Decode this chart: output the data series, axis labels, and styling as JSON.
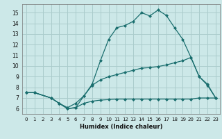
{
  "xlabel": "Humidex (Indice chaleur)",
  "bg_color": "#cce8e8",
  "grid_color": "#aacccc",
  "line_color": "#1a6e6e",
  "xlim": [
    -0.5,
    23.5
  ],
  "ylim": [
    5.5,
    15.8
  ],
  "xticks": [
    0,
    1,
    2,
    3,
    4,
    5,
    6,
    7,
    8,
    9,
    10,
    11,
    12,
    13,
    14,
    15,
    16,
    17,
    18,
    19,
    20,
    21,
    22,
    23
  ],
  "yticks": [
    6,
    7,
    8,
    9,
    10,
    11,
    12,
    13,
    14,
    15
  ],
  "line1_x": [
    0,
    1,
    3,
    4,
    5,
    6,
    7,
    8,
    9,
    10,
    11,
    12,
    13,
    14,
    15,
    16,
    17,
    18,
    19,
    20,
    21,
    22,
    23
  ],
  "line1_y": [
    7.5,
    7.5,
    7.0,
    6.5,
    6.0,
    6.1,
    7.2,
    8.3,
    10.5,
    12.5,
    13.6,
    13.8,
    14.2,
    15.0,
    14.7,
    15.25,
    14.75,
    13.6,
    12.5,
    10.8,
    9.0,
    8.2,
    7.0
  ],
  "line2_x": [
    0,
    1,
    3,
    4,
    5,
    6,
    7,
    8,
    9,
    10,
    11,
    12,
    13,
    14,
    15,
    16,
    17,
    18,
    19,
    20,
    21,
    22,
    23
  ],
  "line2_y": [
    7.5,
    7.5,
    7.0,
    6.5,
    6.1,
    6.5,
    7.2,
    8.2,
    8.7,
    9.0,
    9.2,
    9.4,
    9.6,
    9.8,
    9.85,
    9.95,
    10.1,
    10.3,
    10.5,
    10.8,
    9.0,
    8.3,
    7.0
  ],
  "line3_x": [
    0,
    1,
    3,
    4,
    5,
    6,
    7,
    8,
    9,
    10,
    11,
    12,
    13,
    14,
    15,
    16,
    17,
    18,
    19,
    20,
    21,
    22,
    23
  ],
  "line3_y": [
    7.5,
    7.5,
    7.0,
    6.5,
    6.0,
    6.1,
    6.5,
    6.7,
    6.8,
    6.85,
    6.9,
    6.9,
    6.9,
    6.9,
    6.9,
    6.9,
    6.9,
    6.9,
    6.9,
    6.9,
    7.0,
    7.0,
    7.0
  ],
  "xlabel_fontsize": 6.0,
  "tick_fontsize_x": 5.0,
  "tick_fontsize_y": 5.5
}
